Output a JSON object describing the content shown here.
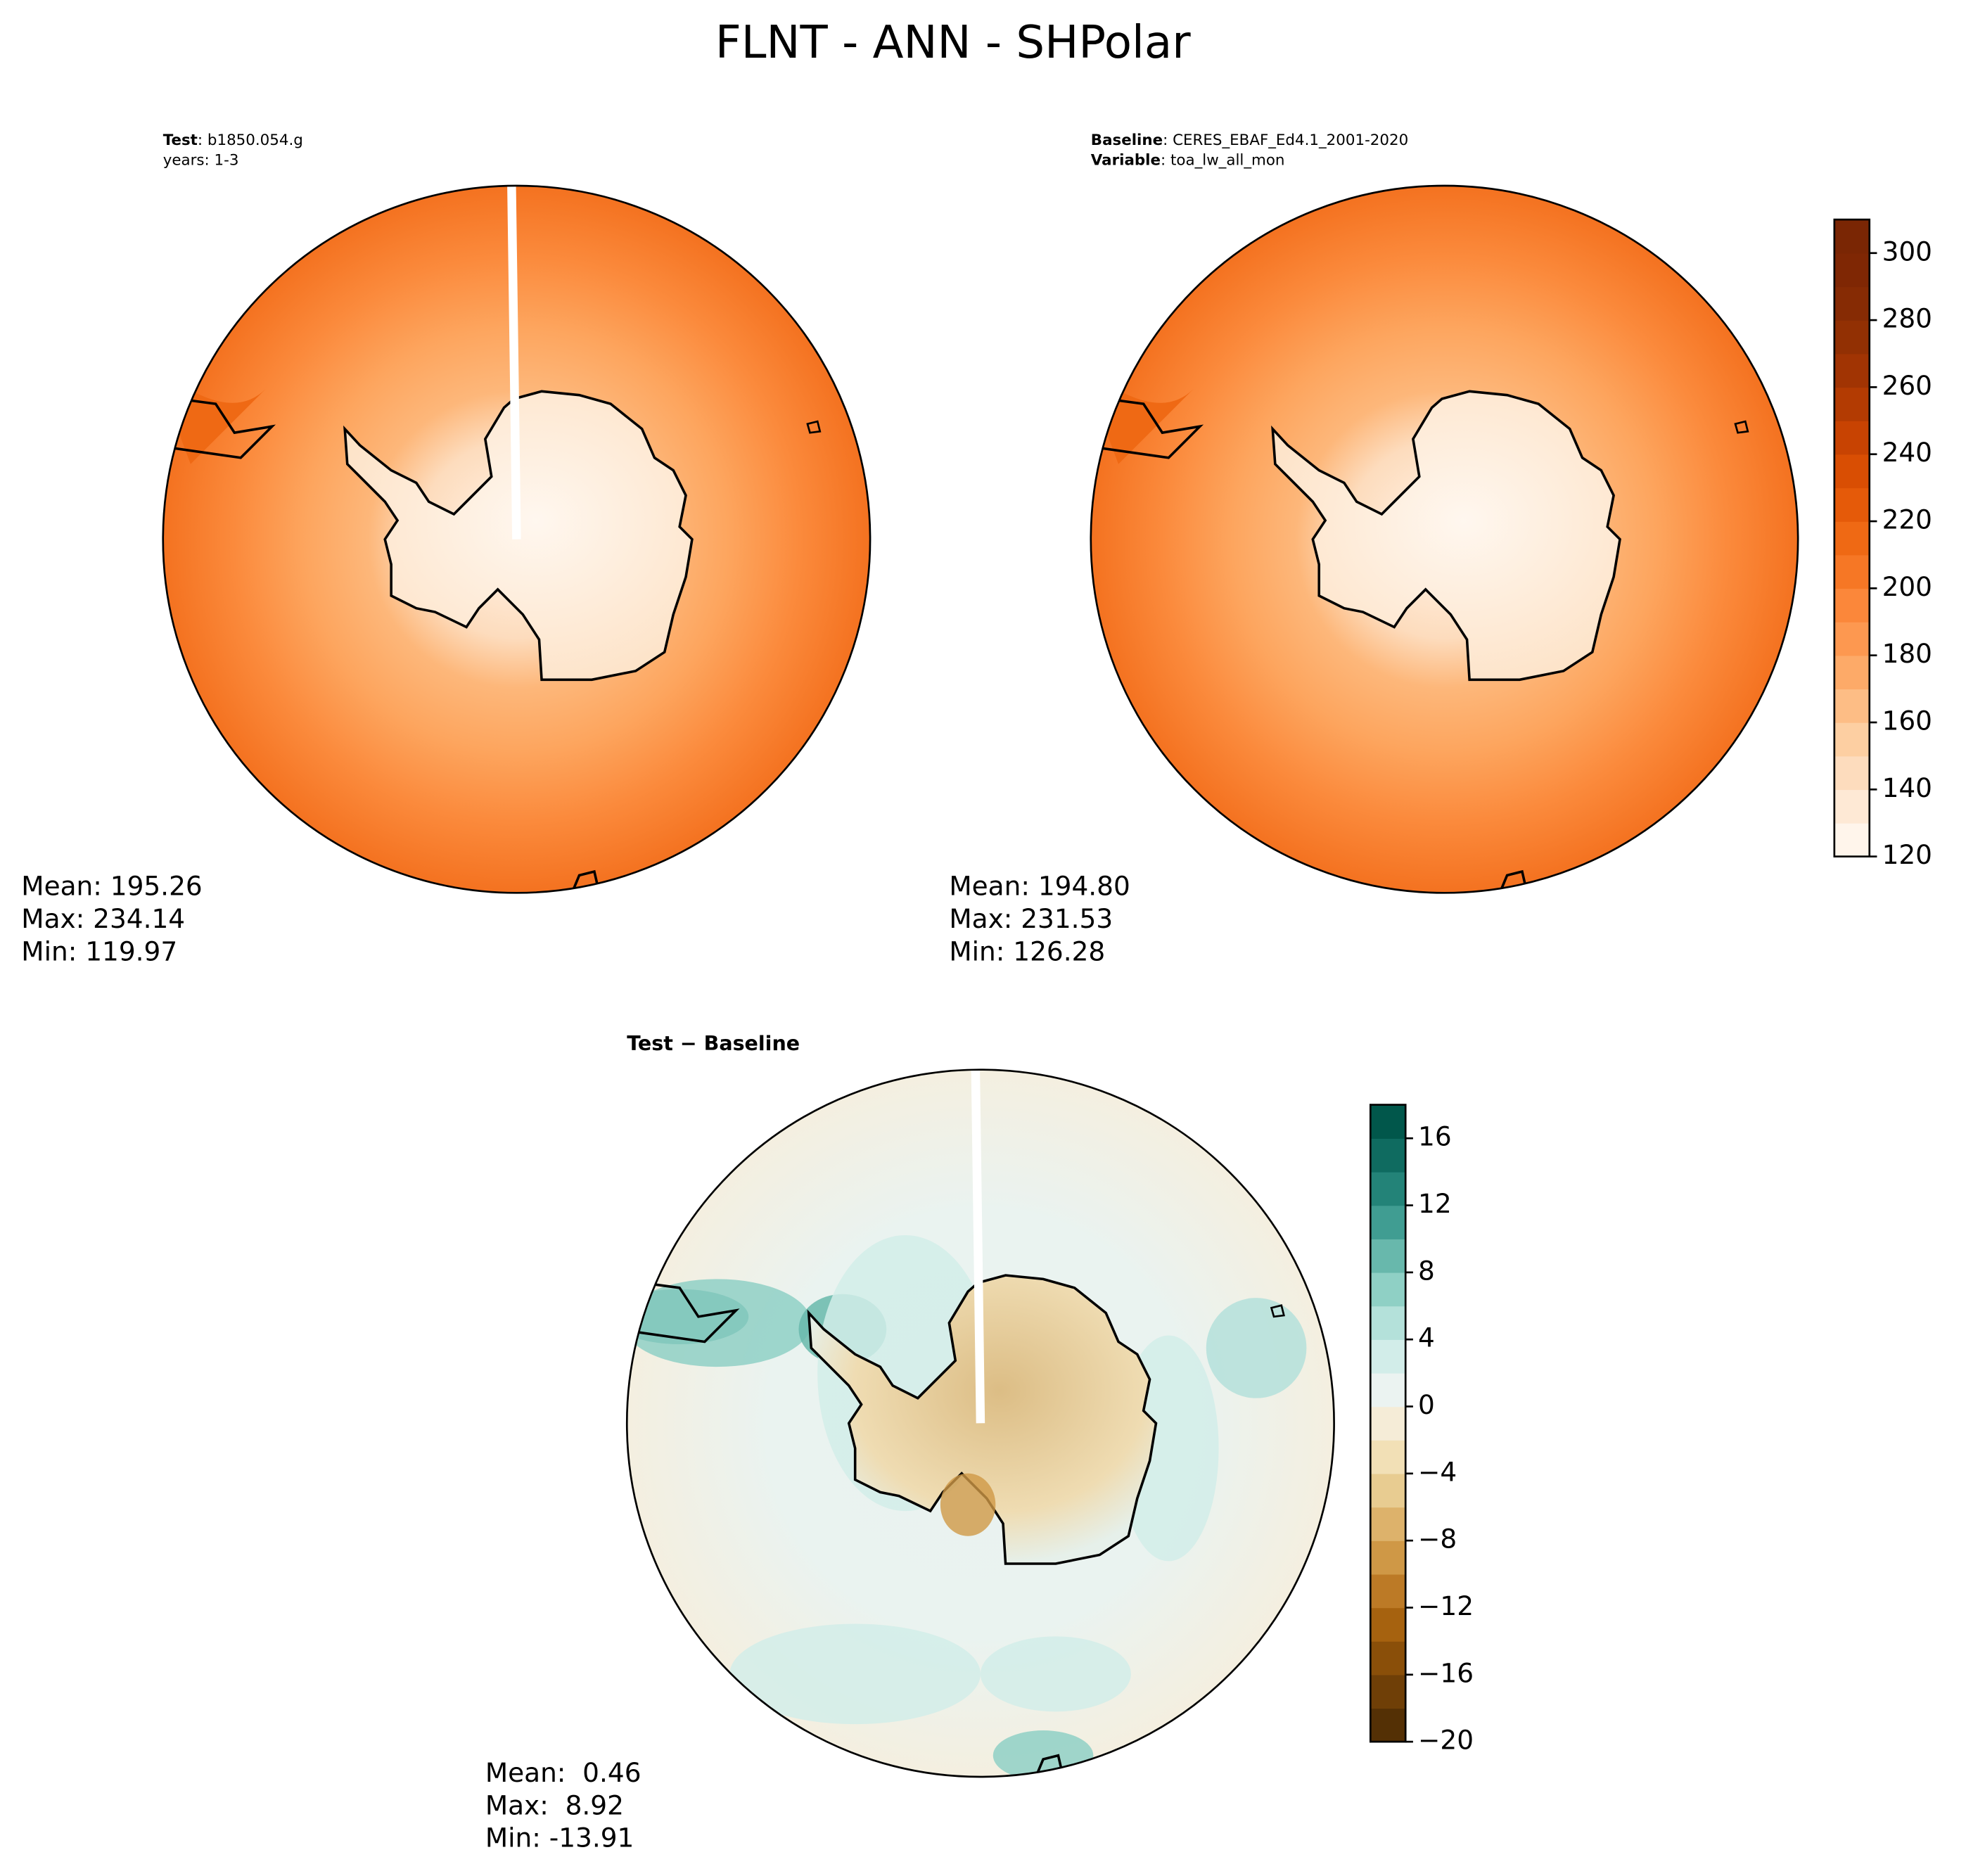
{
  "title": "FLNT - ANN - SHPolar",
  "panels": [
    {
      "header": [
        {
          "label": "Test",
          "text": ": b1850.054.g"
        },
        {
          "text": "years: 1-3"
        }
      ],
      "stats": [
        "Mean: 195.26",
        "Max: 234.14",
        "Min: 119.97"
      ]
    },
    {
      "header": [
        {
          "label": "Baseline",
          "text": ": CERES_EBAF_Ed4.1_2001-2020"
        },
        {
          "label": "Variable",
          "text": ": toa_lw_all_mon"
        }
      ],
      "stats": [
        "Mean: 194.80",
        "Max: 231.53",
        "Min: 126.28"
      ]
    },
    {
      "title": "Test − Baseline",
      "stats": [
        "Mean:  0.46",
        "Max:  8.92",
        "Min: -13.91"
      ]
    }
  ],
  "colorbars": [
    {
      "lim": [
        120,
        310
      ],
      "ticks": [
        120,
        140,
        160,
        180,
        200,
        220,
        240,
        260,
        280,
        300
      ],
      "colors": [
        "#fff5eb",
        "#fee9d5",
        "#fddcbd",
        "#fdcfa2",
        "#fdbd85",
        "#fdaa68",
        "#fd9850",
        "#fb873a",
        "#f67725",
        "#ef6914",
        "#e55a09",
        "#d94e03",
        "#c84302",
        "#b33b02",
        "#a13403",
        "#923003",
        "#862b04",
        "#7f2704",
        "#7a2604"
      ]
    },
    {
      "lim": [
        -20,
        18
      ],
      "ticks": [
        {
          "value": -20,
          "label": "−20"
        },
        {
          "value": -16,
          "label": "−16"
        },
        {
          "value": -12,
          "label": "−12"
        },
        {
          "value": -8,
          "label": "−8"
        },
        {
          "value": -4,
          "label": "−4"
        },
        0,
        4,
        8,
        12,
        16
      ],
      "colors": [
        "#543005",
        "#6f3f07",
        "#8a4f09",
        "#a6620f",
        "#bc7a26",
        "#cf9846",
        "#ddb26b",
        "#e8cc91",
        "#f2e0b6",
        "#f5ecd7",
        "#ebf3f1",
        "#d2ede9",
        "#b4e1da",
        "#8fd0c5",
        "#68b8ac",
        "#409d92",
        "#238378",
        "#0f6b60",
        "#01574b"
      ]
    }
  ]
}
